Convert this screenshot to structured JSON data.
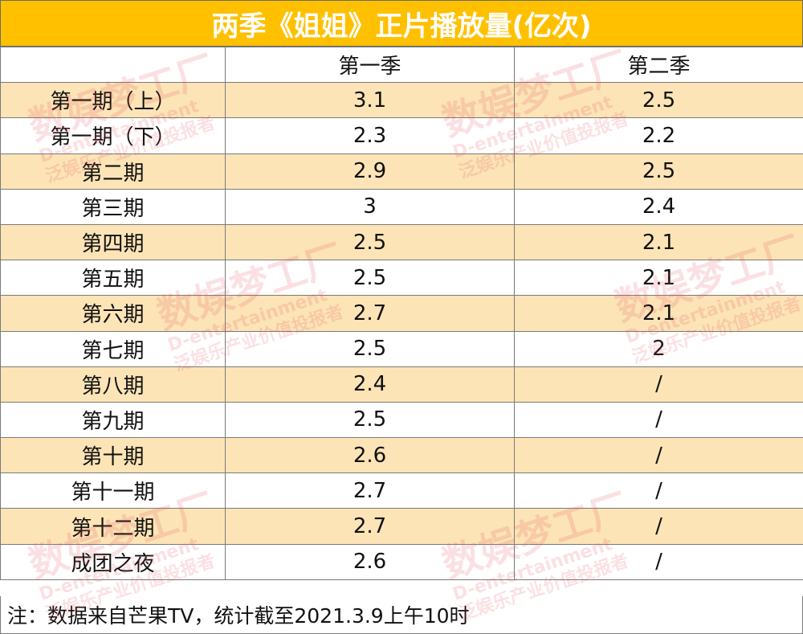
{
  "title": "两季《姐姐》正片播放量(亿次)",
  "chart_data": {
    "type": "table",
    "columns": [
      "",
      "第一季",
      "第二季"
    ],
    "rows": [
      [
        "第一期（上）",
        "3.1",
        "2.5"
      ],
      [
        "第一期（下）",
        "2.3",
        "2.2"
      ],
      [
        "第二期",
        "2.9",
        "2.5"
      ],
      [
        "第三期",
        "3",
        "2.4"
      ],
      [
        "第四期",
        "2.5",
        "2.1"
      ],
      [
        "第五期",
        "2.5",
        "2.1"
      ],
      [
        "第六期",
        "2.7",
        "2.1"
      ],
      [
        "第七期",
        "2.5",
        "2"
      ],
      [
        "第八期",
        "2.4",
        "/"
      ],
      [
        "第九期",
        "2.5",
        "/"
      ],
      [
        "第十期",
        "2.6",
        "/"
      ],
      [
        "第十一期",
        "2.7",
        "/"
      ],
      [
        "第十二期",
        "2.7",
        "/"
      ],
      [
        "成团之夜",
        "2.6",
        "/"
      ]
    ]
  },
  "note": "注：数据来自芒果TV，统计截至2021.3.9上午10时",
  "watermark": {
    "main": "数娱梦工厂",
    "sub": "泛娱乐产业价值投报者",
    "en": "D-entertainment"
  },
  "colors": {
    "title_bg": "#FFC000",
    "alt_row_bg": "#FCE4B6",
    "border": "#7a7a7a"
  }
}
